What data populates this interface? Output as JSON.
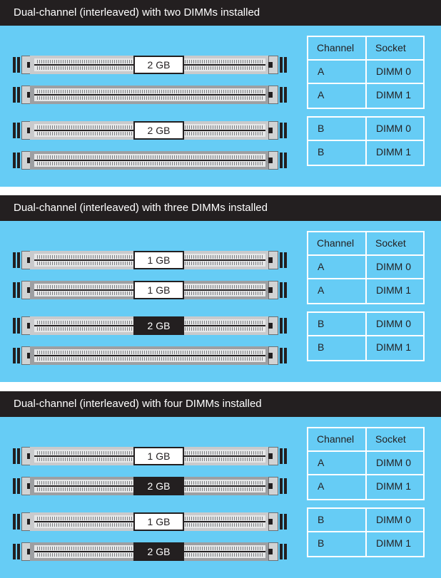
{
  "panels": [
    {
      "title": "Dual-channel (interleaved) with two DIMMs installed",
      "modules": [
        "2 GB",
        "",
        "2 GB",
        ""
      ],
      "table_header": {
        "channel": "Channel",
        "socket": "Socket"
      },
      "rows": [
        {
          "channel": "A",
          "socket": "DIMM 0"
        },
        {
          "channel": "A",
          "socket": "DIMM 1"
        },
        {
          "channel": "B",
          "socket": "DIMM 0"
        },
        {
          "channel": "B",
          "socket": "DIMM 1"
        }
      ]
    },
    {
      "title": "Dual-channel (interleaved) with three DIMMs installed",
      "modules": [
        "1 GB",
        "1 GB",
        "2 GB",
        ""
      ],
      "table_header": {
        "channel": "Channel",
        "socket": "Socket"
      },
      "rows": [
        {
          "channel": "A",
          "socket": "DIMM 0"
        },
        {
          "channel": "A",
          "socket": "DIMM 1"
        },
        {
          "channel": "B",
          "socket": "DIMM 0"
        },
        {
          "channel": "B",
          "socket": "DIMM 1"
        }
      ]
    },
    {
      "title": "Dual-channel (interleaved) with four DIMMs installed",
      "modules": [
        "1 GB",
        "2 GB",
        "1 GB",
        "2 GB"
      ],
      "table_header": {
        "channel": "Channel",
        "socket": "Socket"
      },
      "rows": [
        {
          "channel": "A",
          "socket": "DIMM 0"
        },
        {
          "channel": "A",
          "socket": "DIMM 1"
        },
        {
          "channel": "B",
          "socket": "DIMM 0"
        },
        {
          "channel": "B",
          "socket": "DIMM 1"
        }
      ]
    }
  ],
  "colors": {
    "background": "#66ccf5",
    "header": "#231f20",
    "module_light": "#ffffff",
    "module_dark": "#231f20"
  }
}
